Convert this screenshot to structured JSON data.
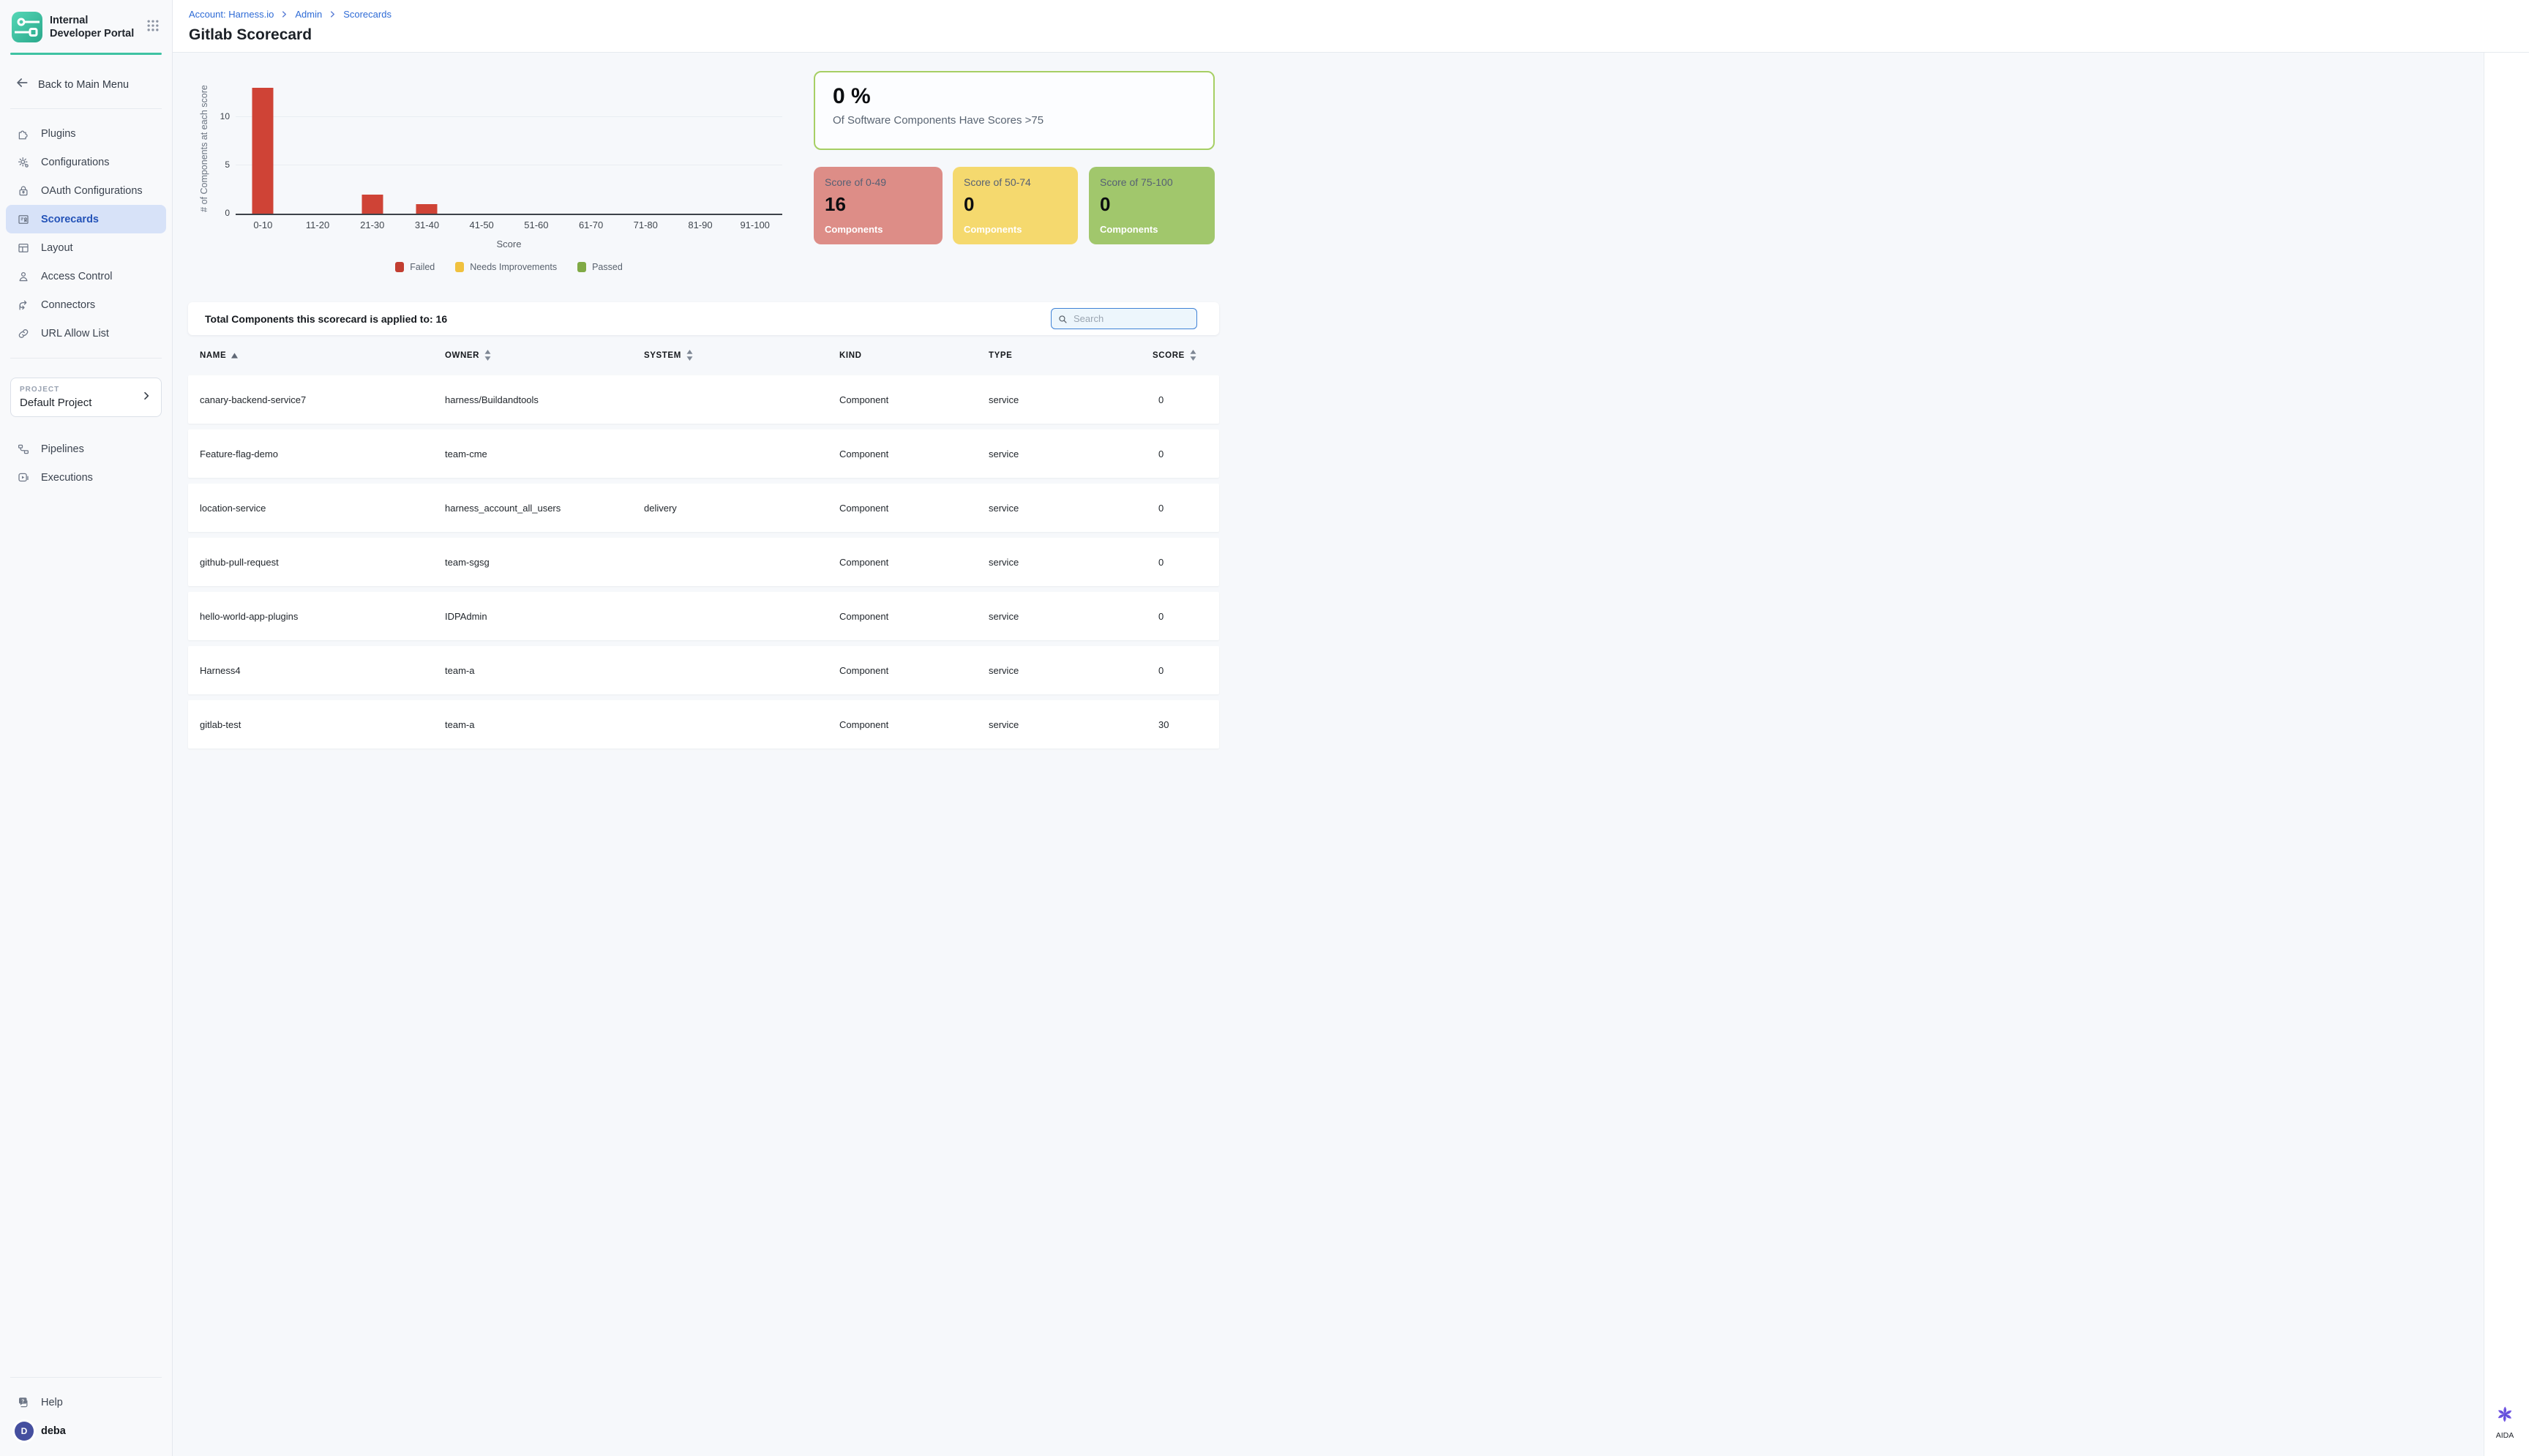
{
  "sidebar": {
    "logo_title": "Internal Developer Portal",
    "back_label": "Back to Main Menu",
    "items": [
      {
        "label": "Plugins"
      },
      {
        "label": "Configurations"
      },
      {
        "label": "OAuth Configurations"
      },
      {
        "label": "Scorecards",
        "active": true
      },
      {
        "label": "Layout"
      },
      {
        "label": "Access Control"
      },
      {
        "label": "Connectors"
      },
      {
        "label": "URL Allow List"
      }
    ],
    "project": {
      "label": "PROJECT",
      "name": "Default Project"
    },
    "project_items": [
      {
        "label": "Pipelines"
      },
      {
        "label": "Executions"
      }
    ],
    "help_label": "Help",
    "user": {
      "initial": "D",
      "name": "deba"
    }
  },
  "breadcrumb": {
    "items": [
      "Account: Harness.io",
      "Admin",
      "Scorecards"
    ]
  },
  "page_title": "Gitlab Scorecard",
  "summary": {
    "percent": "0 %",
    "percent_caption": "Of Software Components Have Scores >75",
    "percent_border_color": "#a6cf64",
    "cards": [
      {
        "title": "Score of 0-49",
        "value": "16",
        "caption": "Components",
        "color": "#dd8d87"
      },
      {
        "title": "Score of 50-74",
        "value": "0",
        "caption": "Components",
        "color": "#f5d96e"
      },
      {
        "title": "Score of 75-100",
        "value": "0",
        "caption": "Components",
        "color": "#a1c76c"
      }
    ]
  },
  "chart_data": {
    "type": "bar",
    "title": "",
    "categories": [
      "0-10",
      "11-20",
      "21-30",
      "31-40",
      "41-50",
      "51-60",
      "61-70",
      "71-80",
      "81-90",
      "91-100"
    ],
    "values": [
      13,
      0,
      2,
      1,
      0,
      0,
      0,
      0,
      0,
      0
    ],
    "xlabel": "Score",
    "ylabel": "# of Components at each score",
    "yticks": [
      0,
      5,
      10
    ],
    "ylim": [
      0,
      13.5
    ],
    "grid": true,
    "bar_color": "#cf4336",
    "legend_position": "bottom",
    "legend": [
      {
        "label": "Failed",
        "color": "#c23e31"
      },
      {
        "label": "Needs Improvements",
        "color": "#f0c13e"
      },
      {
        "label": "Passed",
        "color": "#80aa45"
      }
    ]
  },
  "table": {
    "total_label": "Total Components this scorecard is applied to: 16",
    "search_placeholder": "Search",
    "columns": [
      {
        "label": "NAME",
        "sort": "asc"
      },
      {
        "label": "OWNER",
        "sort": "both"
      },
      {
        "label": "SYSTEM",
        "sort": "both"
      },
      {
        "label": "KIND",
        "sort": "none"
      },
      {
        "label": "TYPE",
        "sort": "none"
      },
      {
        "label": "SCORE",
        "sort": "both"
      }
    ],
    "rows": [
      {
        "name": "canary-backend-service7",
        "owner": "harness/Buildandtools",
        "system": "",
        "kind": "Component",
        "type": "service",
        "score": "0"
      },
      {
        "name": "Feature-flag-demo",
        "owner": "team-cme",
        "system": "",
        "kind": "Component",
        "type": "service",
        "score": "0"
      },
      {
        "name": "location-service",
        "owner": "harness_account_all_users",
        "system": "delivery",
        "kind": "Component",
        "type": "service",
        "score": "0"
      },
      {
        "name": "github-pull-request",
        "owner": "team-sgsg",
        "system": "",
        "kind": "Component",
        "type": "service",
        "score": "0"
      },
      {
        "name": "hello-world-app-plugins",
        "owner": "IDPAdmin",
        "system": "",
        "kind": "Component",
        "type": "service",
        "score": "0"
      },
      {
        "name": "Harness4",
        "owner": "team-a",
        "system": "",
        "kind": "Component",
        "type": "service",
        "score": "0"
      },
      {
        "name": "gitlab-test",
        "owner": "team-a",
        "system": "",
        "kind": "Component",
        "type": "service",
        "score": "30"
      }
    ]
  },
  "aida": {
    "label": "AIDA"
  }
}
